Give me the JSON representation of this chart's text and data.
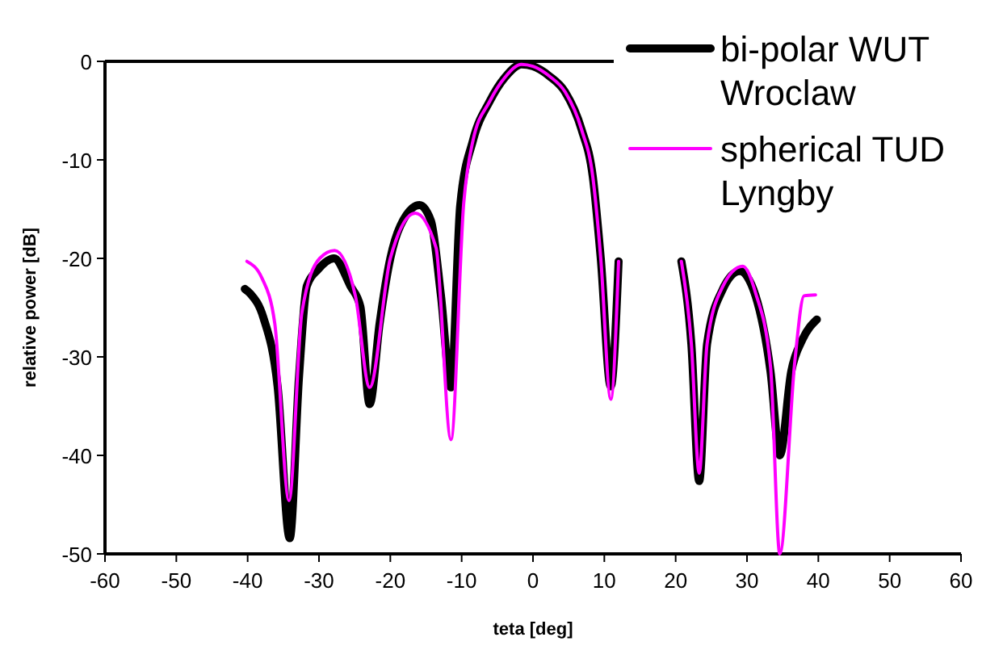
{
  "chart_data": {
    "type": "line",
    "xlabel": "teta [deg]",
    "ylabel": "relative power [dB]",
    "xlim": [
      -60,
      60
    ],
    "xticks": [
      -60,
      -50,
      -40,
      -30,
      -20,
      -10,
      0,
      10,
      20,
      30,
      40,
      50,
      60
    ],
    "ylim": [
      -50,
      0
    ],
    "yticks": [
      -50,
      -40,
      -30,
      -20,
      -10,
      0
    ],
    "grid": false,
    "legend": "top right",
    "marker": "none",
    "line_style": "solid",
    "series": [
      {
        "name": "bi-polar WUT Wroclaw",
        "color": "#000000",
        "x": [
          -40.4,
          -39.6,
          -37.8,
          -35.8,
          -34.1,
          -32.8,
          -31.7,
          -30.1,
          -27.9,
          -25.6,
          -24.2,
          -22.9,
          -21.5,
          -20,
          -18.6,
          -15.9,
          -14.3,
          -12.9,
          -11.5,
          -10.2,
          -8.4,
          -6.1,
          -3.9,
          -1.6,
          0,
          2.3,
          4.5,
          6.8,
          8.4,
          9.5,
          10.9,
          12,
          12.4,
          20.8,
          22.2,
          23.3,
          24.4,
          26.5,
          29,
          31.2,
          33.3,
          34.6,
          36.2,
          37.8,
          39.8
        ],
        "values": [
          -23.1,
          -23.6,
          -26,
          -33,
          -48.4,
          -32,
          -22.8,
          -21.1,
          -20,
          -22.8,
          -24.9,
          -34.8,
          -26.6,
          -20,
          -16.7,
          -14.6,
          -16.2,
          -23.8,
          -33.1,
          -14.6,
          -8,
          -4.1,
          -1.6,
          -0.3,
          -0.5,
          -1.5,
          -3.1,
          -6.9,
          -11.8,
          -20,
          -33,
          -20.3,
          null,
          -20.3,
          -28.7,
          -42.6,
          -28.7,
          -23.3,
          -21.3,
          -23.8,
          -31.5,
          -40,
          -31.5,
          -28.2,
          -26.2
        ]
      },
      {
        "name": "spherical TUD Lyngby",
        "color": "#ff00ff",
        "x": [
          -40.1,
          -38,
          -36.2,
          -34.2,
          -32.4,
          -29.9,
          -27.8,
          -24.9,
          -22.9,
          -20,
          -16.5,
          -13.6,
          -11.5,
          -9.7,
          -8.4,
          -6.1,
          -3.9,
          -1.6,
          0,
          2.3,
          4.5,
          6.8,
          8.4,
          9.5,
          10.9,
          12,
          12.4,
          20.8,
          22.2,
          23.3,
          24.4,
          26.5,
          29.4,
          31.2,
          33.3,
          34.6,
          36.7,
          38,
          39.6
        ],
        "values": [
          -20.3,
          -22,
          -26.6,
          -44.6,
          -25.5,
          -20,
          -19.2,
          -23.8,
          -33.1,
          -20,
          -15.4,
          -18.9,
          -38.4,
          -14.3,
          -8,
          -4.1,
          -1.6,
          -0.3,
          -0.5,
          -1.5,
          -3.1,
          -6.9,
          -11.8,
          -20,
          -34.3,
          -20.3,
          null,
          -20.3,
          -28.7,
          -41.8,
          -28.7,
          -23,
          -20.8,
          -23.5,
          -31,
          -50,
          -30.5,
          -23.8,
          -23.7
        ]
      }
    ]
  }
}
